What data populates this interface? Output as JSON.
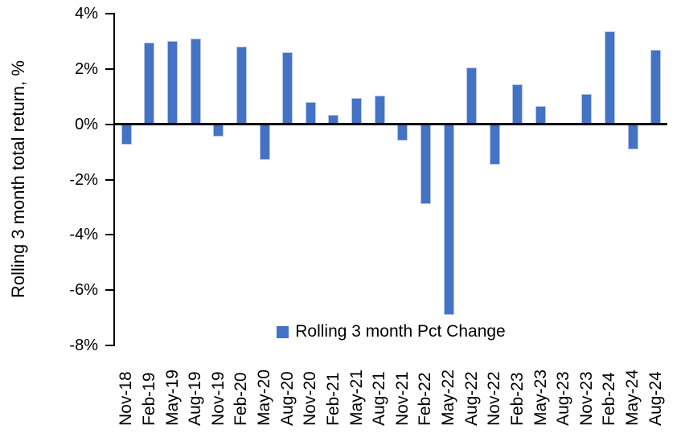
{
  "chart_data": {
    "type": "bar",
    "title": "",
    "xlabel": "",
    "ylabel": "Rolling 3 month total return, %",
    "categories": [
      "Nov-18",
      "Feb-19",
      "May-19",
      "Aug-19",
      "Nov-19",
      "Feb-20",
      "May-20",
      "Aug-20",
      "Nov-20",
      "Feb-21",
      "May-21",
      "Aug-21",
      "Nov-21",
      "Feb-22",
      "May-22",
      "Aug-22",
      "Nov-22",
      "Feb-23",
      "May-23",
      "Aug-23",
      "Nov-23",
      "Feb-24",
      "May-24",
      "Aug-24"
    ],
    "values": [
      -0.75,
      2.95,
      3.0,
      3.1,
      -0.45,
      2.8,
      -1.3,
      2.6,
      0.8,
      0.35,
      0.95,
      1.05,
      -0.6,
      -2.9,
      -6.9,
      2.05,
      -1.45,
      1.45,
      0.65,
      0.0,
      1.1,
      3.35,
      -0.9,
      2.7
    ],
    "ylim": [
      -8,
      4
    ],
    "y_ticks": [
      4,
      2,
      0,
      -2,
      -4,
      -6,
      -8
    ],
    "y_tick_labels": [
      "4%",
      "2%",
      "0%",
      "-2%",
      "-4%",
      "-6%",
      "-8%"
    ],
    "grid": false,
    "legend": {
      "position": "bottom-center",
      "label": "Rolling 3 month Pct Change"
    },
    "colors": {
      "bar_fill": "#4472C4",
      "bar_border": "#B4C7E7",
      "axis": "#000000",
      "text": "#000000",
      "background": "#FFFFFF"
    }
  }
}
